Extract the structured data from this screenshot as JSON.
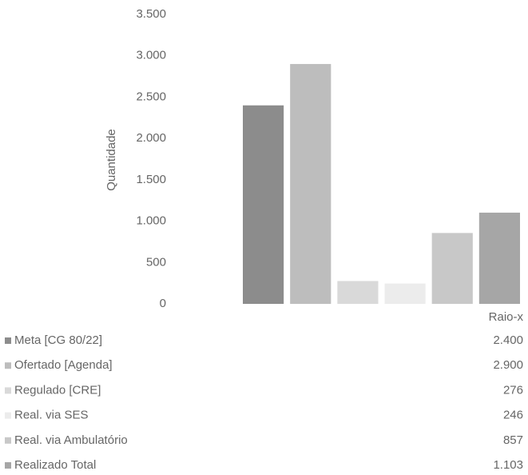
{
  "chart_data": {
    "type": "bar",
    "y_label": "Quantidade",
    "categories": [
      "Raio-x"
    ],
    "series": [
      {
        "name": "Meta [CG 80/22]",
        "color": "#8c8c8c",
        "values": [
          2400
        ],
        "value_labels": [
          "2.400"
        ]
      },
      {
        "name": "Ofertado [Agenda]",
        "color": "#bdbdbd",
        "values": [
          2900
        ],
        "value_labels": [
          "2.900"
        ]
      },
      {
        "name": "Regulado [CRE]",
        "color": "#d9d9d9",
        "values": [
          276
        ],
        "value_labels": [
          "276"
        ]
      },
      {
        "name": "Real. via SES",
        "color": "#ececec",
        "values": [
          246
        ],
        "value_labels": [
          "246"
        ]
      },
      {
        "name": "Real. via Ambulatório",
        "color": "#c8c8c8",
        "values": [
          857
        ],
        "value_labels": [
          "857"
        ]
      },
      {
        "name": "Realizado Total",
        "color": "#a6a6a6",
        "values": [
          1103
        ],
        "value_labels": [
          "1.103"
        ]
      }
    ],
    "ylim": [
      0,
      3500
    ],
    "yticks": [
      0,
      500,
      {
        "value": 1000,
        "label": "1.000"
      },
      {
        "value": 1500,
        "label": "1.500"
      },
      {
        "value": 2000,
        "label": "2.000"
      },
      {
        "value": 2500,
        "label": "2.500"
      },
      {
        "value": 3000,
        "label": "3.000"
      },
      {
        "value": 3500,
        "label": "3.500"
      }
    ],
    "grid": false
  }
}
